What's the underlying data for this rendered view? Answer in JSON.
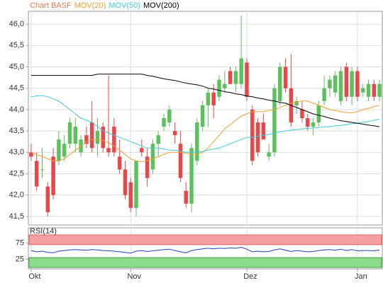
{
  "chart_data": [
    {
      "type": "candlestick",
      "categories": [
        "Okt",
        null,
        null,
        null,
        null,
        null,
        null,
        null,
        null,
        null,
        null,
        null,
        null,
        null,
        null,
        null,
        null,
        null,
        "Nov",
        null,
        null,
        null,
        null,
        null,
        null,
        null,
        null,
        null,
        null,
        null,
        null,
        null,
        null,
        null,
        null,
        null,
        null,
        null,
        null,
        "Dez",
        null,
        null,
        null,
        null,
        null,
        null,
        null,
        null,
        null,
        null,
        null,
        null,
        null,
        null,
        null,
        null,
        null,
        null,
        null,
        "Jan",
        null,
        null,
        null,
        null
      ],
      "ylim": [
        41.3,
        46.3
      ],
      "yticks": [
        {
          "value": 41.5,
          "label": "41,5"
        },
        {
          "value": 42,
          "label": "42,0"
        },
        {
          "value": 42.5,
          "label": "42,5"
        },
        {
          "value": 43,
          "label": "43,0"
        },
        {
          "value": 43.5,
          "label": "43,5"
        },
        {
          "value": 44,
          "label": "44,0"
        },
        {
          "value": 44.5,
          "label": "44,5"
        },
        {
          "value": 45,
          "label": "45,0"
        },
        {
          "value": 45.5,
          "label": "45,5"
        },
        {
          "value": 46,
          "label": "46,0"
        }
      ],
      "grid": true,
      "series": [
        {
          "name": "Chart BASF",
          "color": "#f07850",
          "up_color": "#5cc05c",
          "down_color": "#e8474a",
          "open": [
            43.0,
            42.8,
            42.6,
            42.2,
            42.9,
            42.8,
            42.9,
            43.2,
            43.2,
            43.0,
            43.4,
            43.7,
            43.2,
            43.6,
            43.1,
            43.6,
            42.9,
            42.6,
            42.3,
            41.7,
            43.1,
            42.9,
            42.6,
            43.2,
            43.6,
            43.7,
            43.5,
            43.2,
            42.1,
            41.8,
            42.8,
            43.6,
            44.1,
            44.4,
            44.3,
            44.5,
            44.9,
            44.6,
            44.6,
            45.1,
            44.0,
            43.7,
            43.7,
            42.9,
            43.0,
            44.2,
            45.0,
            44.5,
            44.1,
            44.0,
            43.8,
            43.6,
            43.7,
            44.2,
            44.5,
            44.4,
            44.2,
            45.0,
            44.3,
            44.9,
            44.4,
            44.3,
            44.6,
            44.3
          ],
          "high": [
            43.2,
            43.0,
            43.1,
            42.3,
            43.1,
            43.5,
            43.4,
            43.8,
            43.8,
            43.4,
            43.6,
            44.2,
            43.8,
            43.7,
            44.8,
            43.8,
            43.3,
            42.8,
            42.4,
            42.8,
            43.3,
            43.1,
            43.3,
            43.5,
            43.9,
            44.1,
            43.7,
            43.5,
            42.3,
            43.2,
            43.8,
            44.2,
            44.5,
            44.6,
            44.8,
            44.9,
            45.0,
            45.0,
            46.2,
            45.2,
            44.1,
            43.8,
            43.9,
            43.2,
            44.6,
            45.1,
            45.2,
            45.3,
            44.3,
            44.2,
            43.9,
            43.8,
            44.2,
            44.8,
            44.8,
            44.9,
            45.0,
            45.1,
            45.0,
            45.0,
            44.6,
            44.7,
            44.7,
            44.7
          ],
          "low": [
            42.8,
            42.1,
            42.4,
            41.5,
            41.9,
            42.7,
            42.8,
            43.1,
            43.0,
            42.9,
            43.1,
            43.0,
            42.9,
            43.0,
            42.9,
            42.9,
            42.5,
            41.9,
            41.6,
            41.5,
            42.9,
            42.2,
            42.5,
            42.9,
            43.5,
            43.6,
            43.2,
            42.3,
            41.7,
            41.6,
            42.7,
            43.5,
            43.6,
            43.8,
            44.2,
            44.4,
            44.6,
            44.4,
            44.5,
            44.2,
            42.7,
            42.9,
            43.3,
            42.8,
            42.9,
            44.1,
            44.4,
            43.6,
            43.9,
            43.7,
            43.5,
            43.4,
            43.6,
            44.1,
            44.3,
            44.3,
            44.1,
            44.2,
            44.1,
            44.2,
            44.3,
            44.2,
            44.2,
            44.2
          ],
          "close": [
            42.9,
            42.2,
            42.6,
            41.6,
            42.0,
            43.3,
            43.2,
            43.7,
            43.6,
            43.3,
            43.2,
            43.1,
            43.5,
            43.1,
            43.0,
            43.0,
            42.6,
            42.0,
            41.7,
            42.8,
            43.0,
            42.4,
            43.2,
            43.4,
            43.8,
            44.0,
            43.4,
            42.4,
            41.8,
            43.1,
            43.7,
            44.1,
            44.4,
            44.1,
            44.7,
            44.6,
            44.6,
            44.9,
            45.2,
            44.3,
            42.8,
            43.0,
            43.3,
            43.0,
            44.5,
            45.0,
            44.5,
            43.7,
            44.2,
            43.8,
            43.6,
            43.7,
            44.1,
            44.5,
            44.7,
            44.8,
            44.9,
            44.3,
            44.9,
            44.3,
            44.5,
            44.6,
            44.3,
            44.6
          ]
        },
        {
          "name": "MOV(20)",
          "color": "#f0a030",
          "values": [
            43.0,
            42.95,
            42.9,
            42.85,
            42.8,
            42.8,
            42.85,
            42.95,
            43.05,
            43.15,
            43.25,
            43.3,
            43.3,
            43.28,
            43.22,
            43.15,
            43.05,
            42.95,
            42.85,
            42.8,
            42.78,
            42.8,
            42.85,
            42.9,
            42.95,
            43.0,
            43.0,
            43.0,
            42.98,
            42.95,
            42.95,
            43.0,
            43.1,
            43.25,
            43.4,
            43.55,
            43.65,
            43.75,
            43.85,
            43.9,
            43.95,
            43.95,
            43.95,
            43.98,
            44.0,
            44.05,
            44.1,
            44.15,
            44.18,
            44.2,
            44.2,
            44.15,
            44.1,
            44.05,
            44.0,
            43.98,
            43.95,
            43.93,
            43.92,
            43.95,
            44.0,
            44.03,
            44.07,
            44.1
          ]
        },
        {
          "name": "MOV(50)",
          "color": "#40c8dc",
          "values": [
            44.3,
            44.32,
            44.33,
            44.3,
            44.25,
            44.2,
            44.1,
            44.0,
            43.9,
            43.8,
            43.75,
            43.7,
            43.6,
            43.5,
            43.45,
            43.4,
            43.35,
            43.3,
            43.25,
            43.2,
            43.15,
            43.1,
            43.1,
            43.1,
            43.08,
            43.05,
            43.05,
            43.03,
            43.0,
            43.0,
            43.0,
            43.02,
            43.05,
            43.08,
            43.1,
            43.15,
            43.2,
            43.25,
            43.3,
            43.35,
            43.35,
            43.38,
            43.4,
            43.42,
            43.45,
            43.48,
            43.5,
            43.52,
            43.53,
            43.55,
            43.56,
            43.57,
            43.58,
            43.6,
            43.6,
            43.62,
            43.63,
            43.65,
            43.67,
            43.68,
            43.7,
            43.72,
            43.75,
            43.78
          ]
        },
        {
          "name": "MOV(200)",
          "color": "#000000",
          "values": [
            44.8,
            44.8,
            44.8,
            44.8,
            44.8,
            44.8,
            44.8,
            44.8,
            44.8,
            44.8,
            44.8,
            44.8,
            44.83,
            44.83,
            44.83,
            44.83,
            44.83,
            44.83,
            44.83,
            44.83,
            44.83,
            44.8,
            44.78,
            44.75,
            44.72,
            44.7,
            44.68,
            44.65,
            44.62,
            44.6,
            44.58,
            44.55,
            44.5,
            44.48,
            44.45,
            44.42,
            44.4,
            44.37,
            44.35,
            44.32,
            44.3,
            44.27,
            44.25,
            44.22,
            44.2,
            44.17,
            44.15,
            44.1,
            44.05,
            44.0,
            43.95,
            43.9,
            43.87,
            43.84,
            43.8,
            43.77,
            43.74,
            43.72,
            43.7,
            43.68,
            43.66,
            43.64,
            43.62,
            43.6
          ]
        }
      ]
    },
    {
      "type": "line",
      "title": "RSI(14)",
      "ylim": [
        0,
        100
      ],
      "yticks": [
        25,
        75
      ],
      "bands": [
        {
          "range": [
            70,
            100
          ],
          "color": "#f4a0a0",
          "edge": "#e06060"
        },
        {
          "range": [
            0,
            30
          ],
          "color": "#8cdc8c",
          "edge": "#40a040"
        }
      ],
      "series": [
        {
          "color": "#2040c0",
          "values": [
            52,
            48,
            50,
            46,
            45,
            50,
            52,
            54,
            55,
            54,
            53,
            55,
            54,
            52,
            51,
            50,
            48,
            46,
            44,
            50,
            52,
            49,
            51,
            53,
            55,
            56,
            52,
            48,
            45,
            52,
            55,
            57,
            59,
            57,
            59,
            58,
            60,
            59,
            62,
            56,
            48,
            50,
            48,
            49,
            54,
            57,
            53,
            49,
            52,
            50,
            48,
            49,
            52,
            54,
            55,
            53,
            56,
            52,
            55,
            51,
            52,
            52,
            51,
            54
          ]
        }
      ]
    }
  ]
}
